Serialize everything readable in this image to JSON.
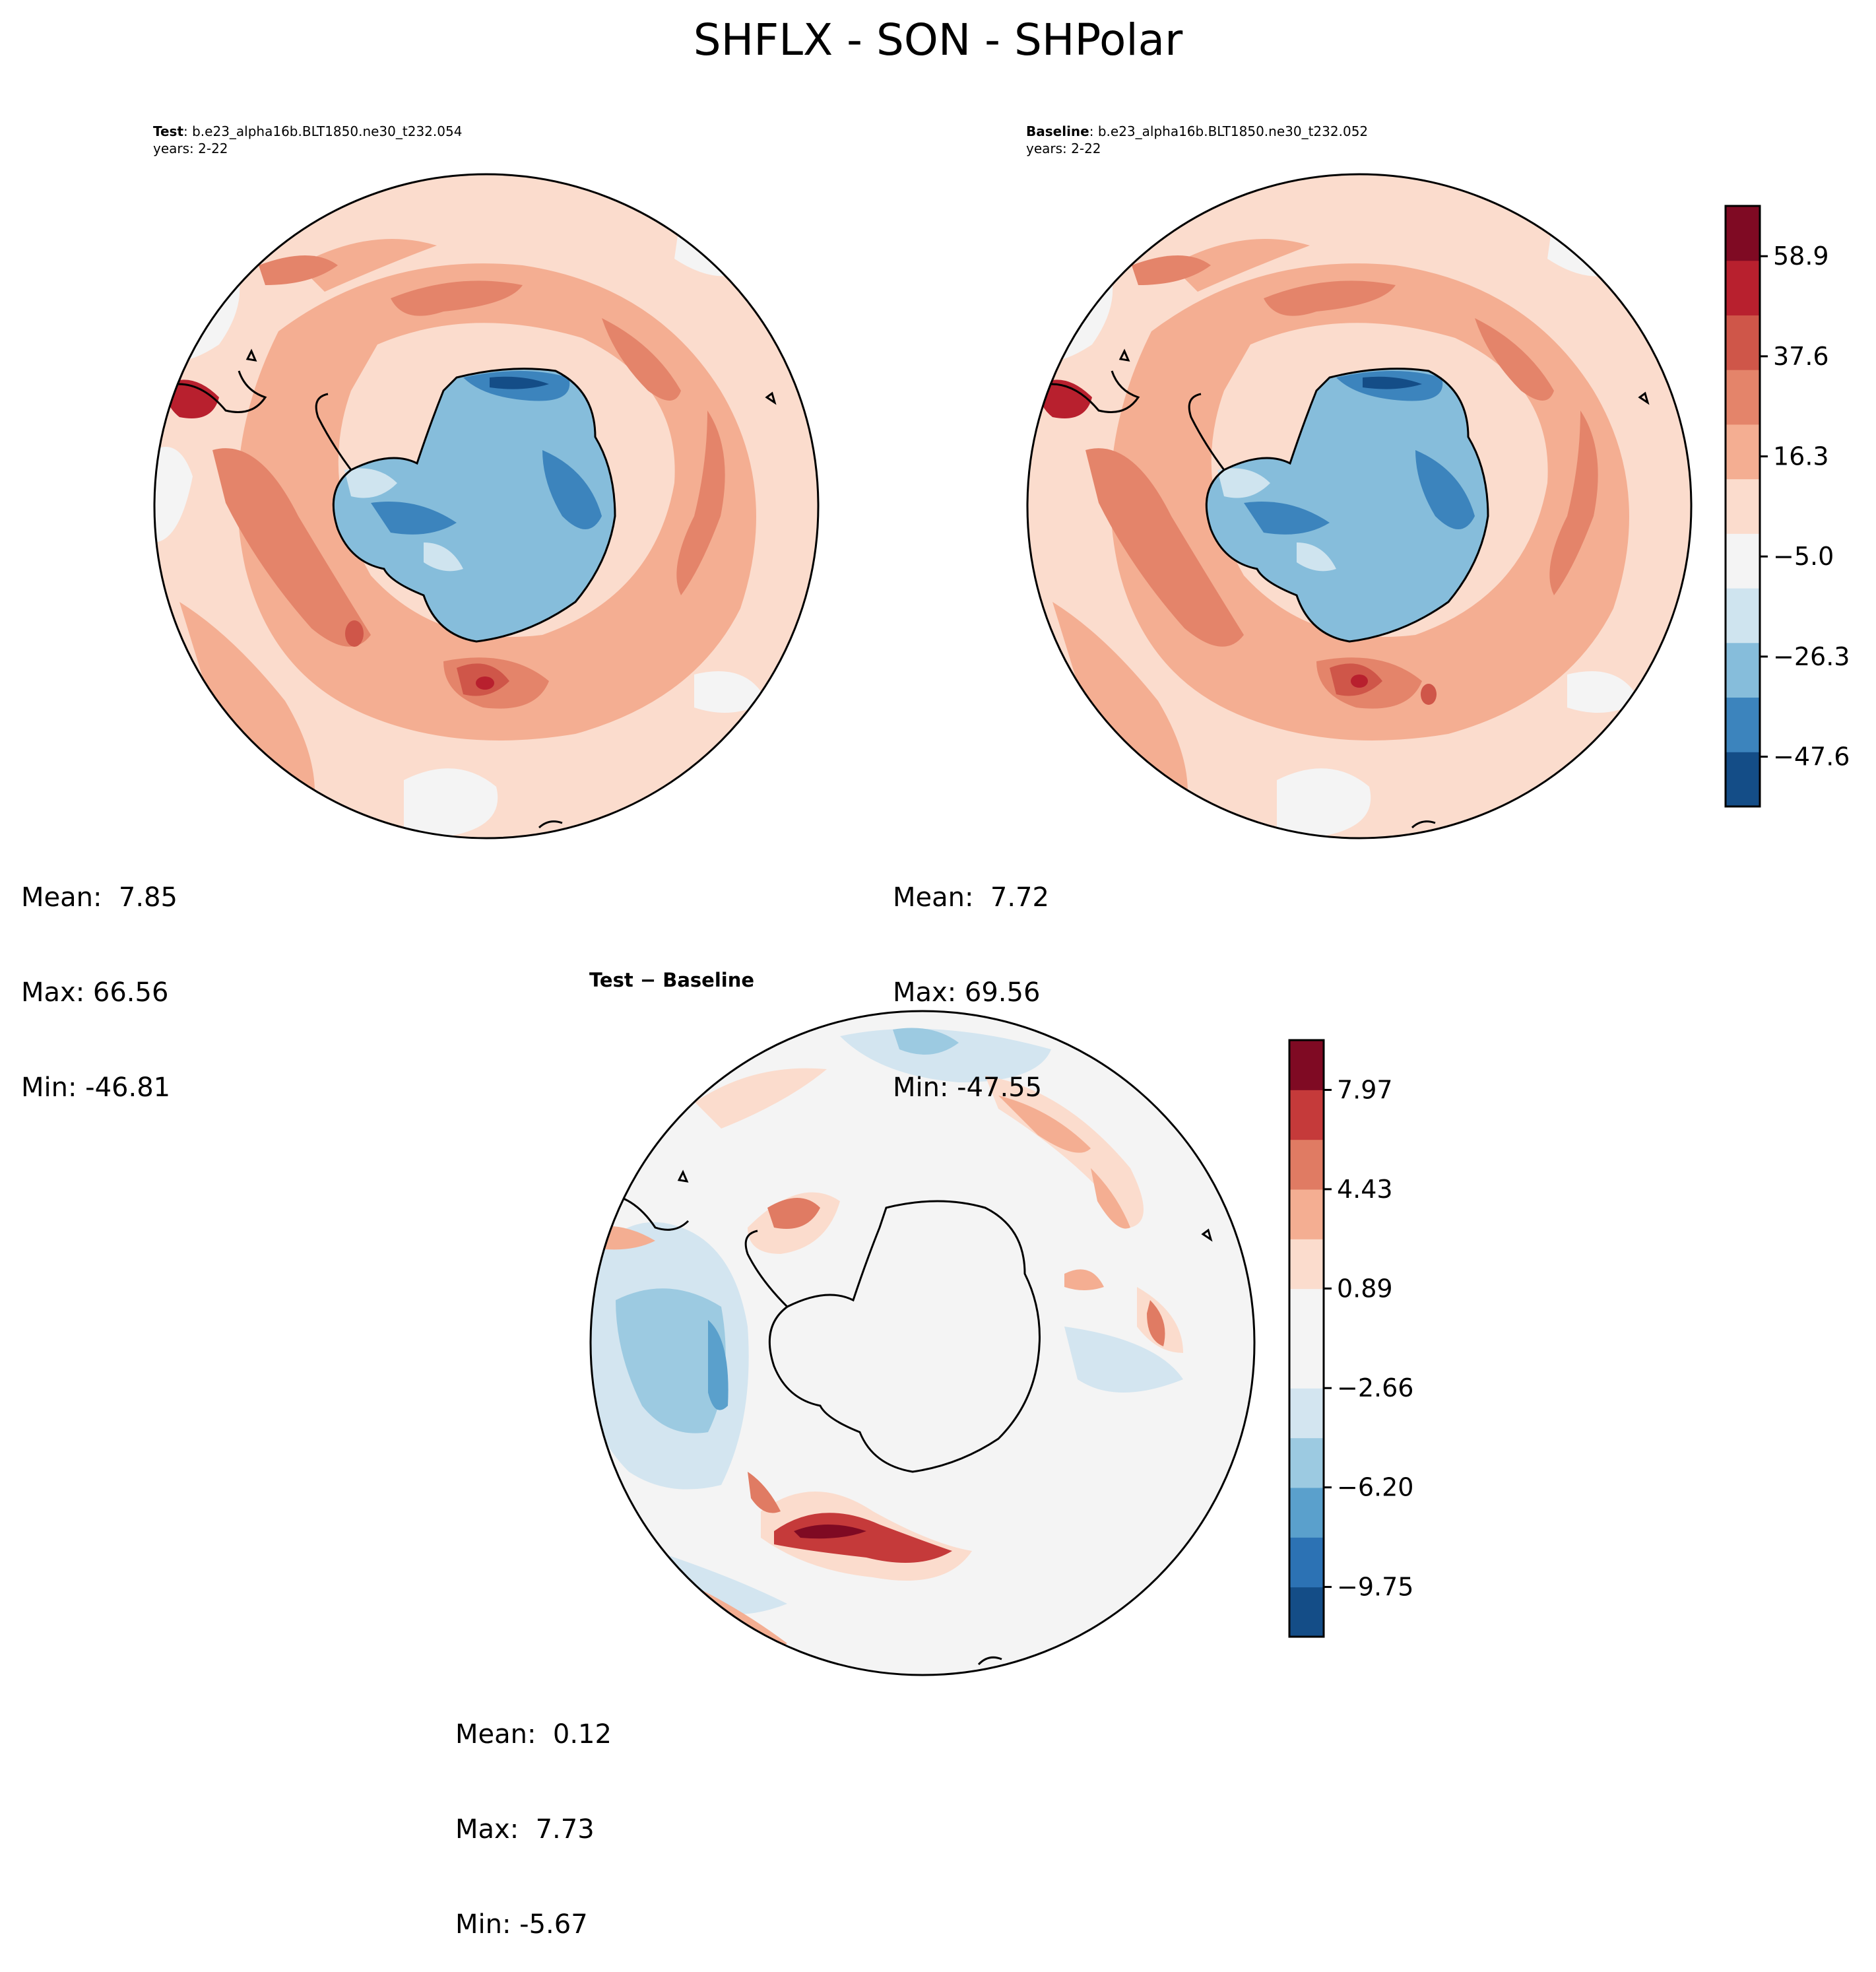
{
  "title": "SHFLX - SON - SHPolar",
  "chart_data": [
    {
      "type": "heatmap",
      "projection": "south-polar-stereographic",
      "label_bold": "Test",
      "case": ": b.e23_alpha16b.BLT1850.ne30_t232.054",
      "years": "years: 2-22",
      "stats": {
        "mean": "Mean:  7.85",
        "max": "Max: 66.56",
        "min": "Min: -46.81"
      }
    },
    {
      "type": "heatmap",
      "projection": "south-polar-stereographic",
      "label_bold": "Baseline",
      "case": ": b.e23_alpha16b.BLT1850.ne30_t232.052",
      "years": "years: 2-22",
      "stats": {
        "mean": "Mean:  7.72",
        "max": "Max: 69.56",
        "min": "Min: -47.55"
      }
    },
    {
      "type": "heatmap",
      "projection": "south-polar-stereographic",
      "title": "Test − Baseline",
      "stats": {
        "mean": "Mean:  0.12",
        "max": "Max:  7.73",
        "min": "Min: -5.67"
      }
    }
  ],
  "colorbars": {
    "main": {
      "range": [
        -58.2,
        69.6
      ],
      "levels": 11,
      "tick_values": [
        58.9,
        37.6,
        16.3,
        -5.0,
        -26.3,
        -47.6
      ],
      "tick_labels": [
        "58.9",
        "37.6",
        "16.3",
        "−5.0",
        "−26.3",
        "−47.6"
      ],
      "colors": [
        "#144d87",
        "#3c84bd",
        "#86bddb",
        "#cfe4ef",
        "#f4f4f4",
        "#fbdccd",
        "#f4ae92",
        "#e4846a",
        "#cf5649",
        "#b8202e",
        "#7f0a23"
      ]
    },
    "diff": {
      "range": [
        -11.525,
        9.745
      ],
      "levels": 12,
      "tick_values": [
        7.97,
        4.43,
        0.89,
        -2.66,
        -6.2,
        -9.75
      ],
      "tick_labels": [
        "7.97",
        "4.43",
        "0.89",
        "−2.66",
        "−6.20",
        "−9.75"
      ],
      "colors": [
        "#144d87",
        "#2c72b4",
        "#5aa0cc",
        "#9ccae1",
        "#d3e5f0",
        "#f4f4f4",
        "#f4f4f4",
        "#fbdccd",
        "#f4ae92",
        "#e07b63",
        "#c53a3a",
        "#7f0a23"
      ]
    }
  },
  "palette": {
    "white": "#f4f4f4",
    "pink": "#fbdccd",
    "salmon": "#f4ae92",
    "orange": "#e4846a",
    "red": "#cf5649",
    "darkred": "#b8202e",
    "crimson": "#7f0a23",
    "lightblue": "#cfe4ef",
    "midblue": "#86bddb",
    "blue": "#3c84bd",
    "navy": "#144d87"
  }
}
